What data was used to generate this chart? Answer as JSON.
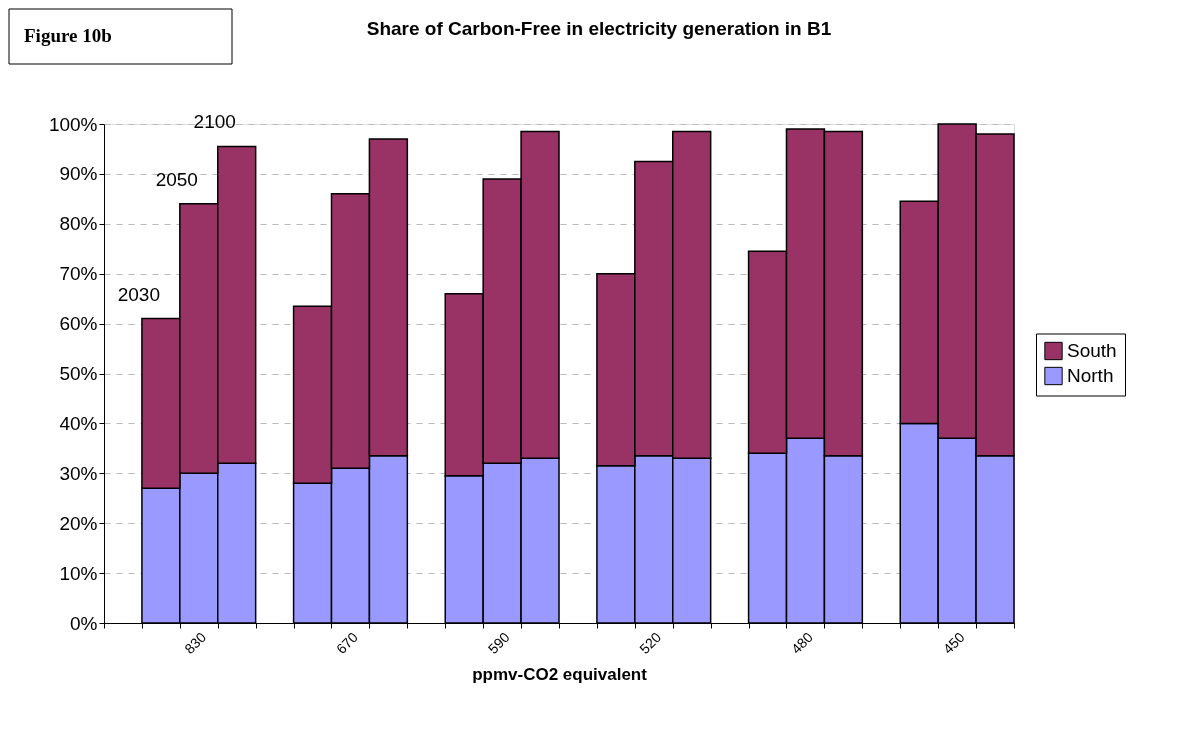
{
  "chart_data": {
    "type": "bar",
    "stacked": true,
    "title": "Share of Carbon-Free in electricity generation in B1",
    "xlabel": "ppmv-CO2 equivalent",
    "categories": [
      null,
      null,
      "830",
      null,
      null,
      null,
      "670",
      null,
      null,
      null,
      "590",
      null,
      null,
      null,
      "520",
      null,
      null,
      null,
      "480",
      null,
      null,
      null,
      "450",
      null
    ],
    "series": [
      {
        "name": "North",
        "color": "#9999ff",
        "values": [
          null,
          27,
          30,
          32,
          null,
          28,
          31,
          33.5,
          null,
          29.5,
          32,
          33,
          null,
          31.5,
          33.5,
          33,
          null,
          34,
          37,
          33.5,
          null,
          40,
          37,
          33.5
        ]
      },
      {
        "name": "South",
        "color": "#993366",
        "values": [
          null,
          34,
          54,
          63.5,
          null,
          35.5,
          55,
          63.5,
          null,
          36.5,
          57,
          65.5,
          null,
          38.5,
          59,
          65.5,
          null,
          40.5,
          62,
          65,
          null,
          44.5,
          63,
          64.5
        ]
      }
    ],
    "ylim": [
      0,
      100
    ],
    "yticks": [
      {
        "value": 0,
        "label": "0%"
      },
      {
        "value": 10,
        "label": "10%"
      },
      {
        "value": 20,
        "label": "20%"
      },
      {
        "value": 30,
        "label": "30%"
      },
      {
        "value": 40,
        "label": "40%"
      },
      {
        "value": 50,
        "label": "50%"
      },
      {
        "value": 60,
        "label": "60%"
      },
      {
        "value": 70,
        "label": "70%"
      },
      {
        "value": 80,
        "label": "80%"
      },
      {
        "value": 90,
        "label": "90%"
      },
      {
        "value": 100,
        "label": "100%"
      }
    ],
    "grid": "y",
    "legend": "right",
    "annotations": [
      "Figure 10b",
      "2030",
      "2050",
      "2100"
    ]
  }
}
